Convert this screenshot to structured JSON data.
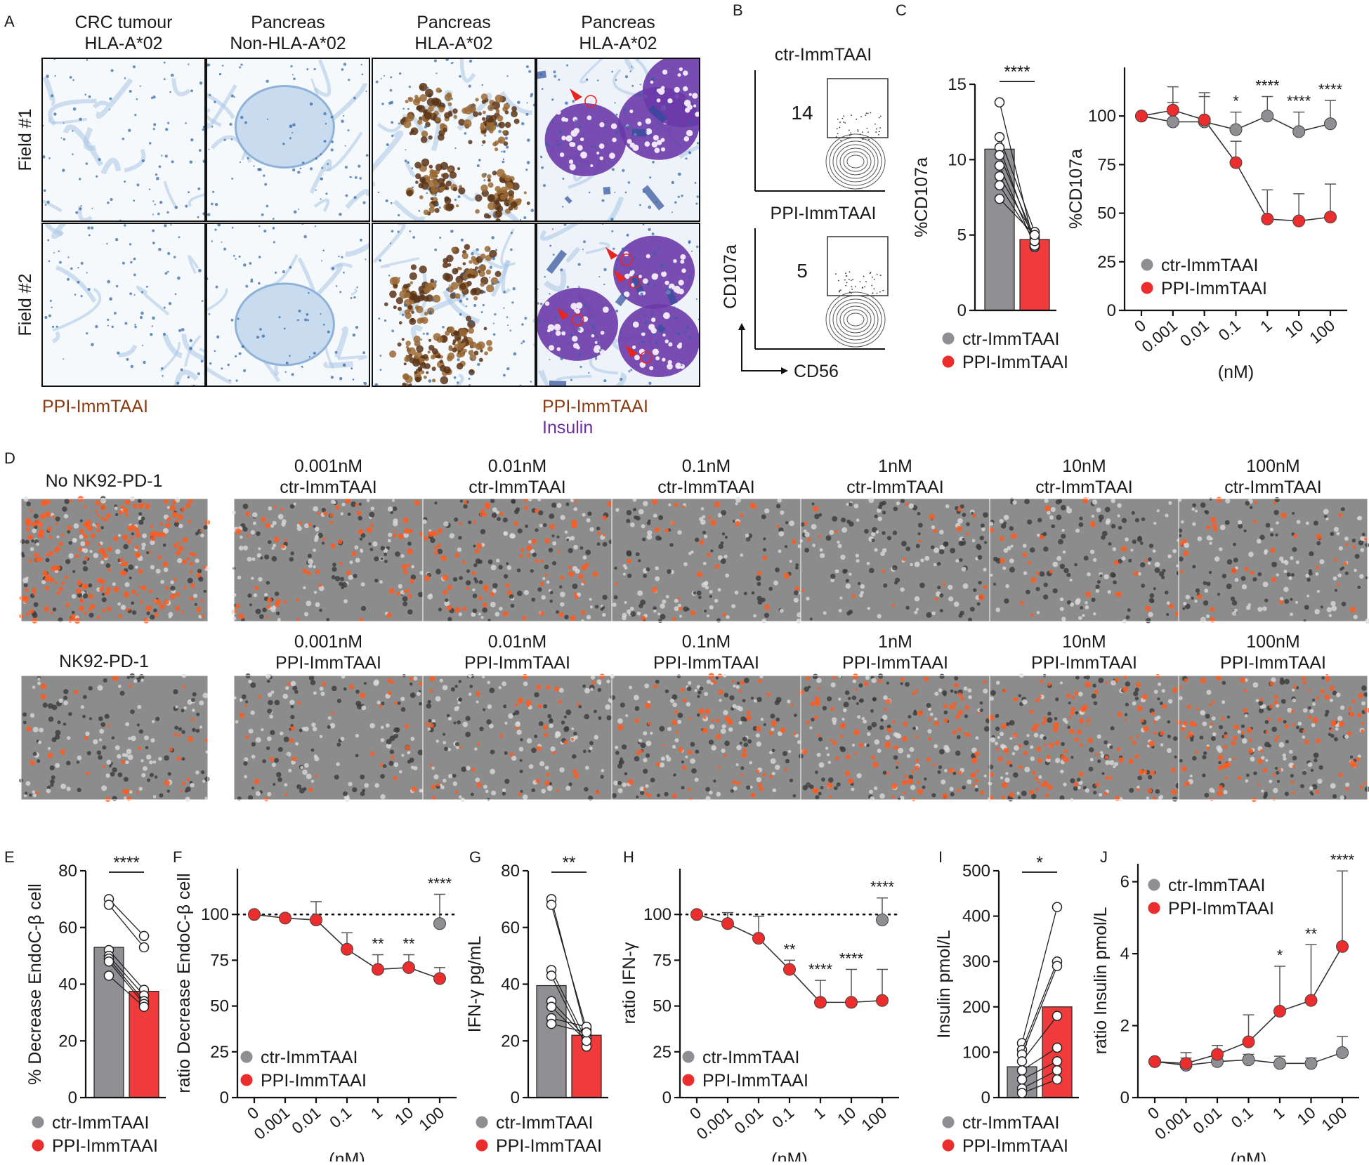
{
  "panel_letters": [
    "A",
    "B",
    "C",
    "D",
    "E",
    "F",
    "G",
    "H",
    "I",
    "J"
  ],
  "colors": {
    "grey": "#8e8e93",
    "red": "#ec2d2d",
    "bar_grey": "#8f8f94",
    "bar_red": "#ef3b3b",
    "brown": "#8a3b12",
    "purple": "#6b2fa0",
    "hema_blue": "#5d8fc2",
    "orange": "#ff5a1e"
  },
  "legend": {
    "ctr": "ctr-ImmTAAI",
    "ppi": "PPI-ImmTAAI"
  },
  "panel_a": {
    "columns": [
      {
        "line1": "CRC tumour",
        "line2": "HLA-A*02",
        "stain": "hema"
      },
      {
        "line1": "Pancreas",
        "line2": "Non-HLA-A*02",
        "stain": "islet-hema"
      },
      {
        "line1": "Pancreas",
        "line2": "HLA-A*02",
        "stain": "brown"
      },
      {
        "line1": "Pancreas",
        "line2": "HLA-A*02",
        "stain": "purple"
      }
    ],
    "rows": [
      "Field #1",
      "Field #2"
    ],
    "footer_left": "PPI-ImmTAAI",
    "footer_right_1": "PPI-ImmTAAI",
    "footer_right_2": "Insulin"
  },
  "panel_b": {
    "flow_top_label": "ctr-ImmTAAI",
    "flow_bottom_label": "PPI-ImmTAAI",
    "gate_top": "14",
    "gate_bottom": "5",
    "y_axis": "CD107a",
    "x_axis": "CD56"
  },
  "panel_d": {
    "top_label": "No NK92-PD-1",
    "bottom_label": "NK92-PD-1",
    "doses": [
      "0.001nM",
      "0.01nM",
      "0.1nM",
      "1nM",
      "10nM",
      "100nM"
    ],
    "top_agent": "ctr-ImmTAAI",
    "bottom_agent": "PPI-ImmTAAI",
    "intensity_top": [
      0.3,
      0.35,
      0.15,
      0.1,
      0.12,
      0.15
    ],
    "intensity_bottom": [
      0.15,
      0.2,
      0.3,
      0.45,
      0.5,
      0.5
    ],
    "intensity_ctrl_top": 1.0,
    "intensity_ctrl_bottom": 0.15
  },
  "chart_data": [
    {
      "id": "B",
      "type": "bar",
      "title": "",
      "xlabel": "",
      "ylabel": "%CD107a",
      "ylim": [
        0,
        15
      ],
      "yticks": [
        0,
        5,
        10,
        15
      ],
      "categories": [
        "ctr-ImmTAAI",
        "PPI-ImmTAAI"
      ],
      "values": [
        10.7,
        4.7
      ],
      "paired_points": [
        [
          13.8,
          4.2
        ],
        [
          11.5,
          5.2
        ],
        [
          10.8,
          4.4
        ],
        [
          10.3,
          4.8
        ],
        [
          9.6,
          4.3
        ],
        [
          8.9,
          4.9
        ],
        [
          8.3,
          4.6
        ],
        [
          7.4,
          5.0
        ]
      ],
      "annotation": "****"
    },
    {
      "id": "C",
      "type": "line",
      "xlabel": "(nM)",
      "ylabel": "%CD107a",
      "ylim": [
        0,
        125
      ],
      "yticks": [
        0,
        25,
        50,
        75,
        100
      ],
      "categories": [
        "0",
        "0.001",
        "0.01",
        "0.1",
        "1",
        "10",
        "100"
      ],
      "series": [
        {
          "name": "ctr-ImmTAAI",
          "values": [
            100,
            97,
            97,
            93,
            100,
            92,
            96
          ],
          "errors": [
            0,
            10,
            15,
            9,
            10,
            10,
            12
          ]
        },
        {
          "name": "PPI-ImmTAAI",
          "values": [
            100,
            103,
            98,
            76,
            47,
            46,
            48
          ],
          "errors": [
            0,
            12,
            12,
            11,
            15,
            14,
            17
          ]
        }
      ],
      "annotations": {
        "3": "*",
        "4": "****",
        "5": "****",
        "6": "****"
      }
    },
    {
      "id": "E",
      "type": "bar",
      "xlabel": "",
      "ylabel": "% Decrease EndoC-β cell",
      "ylim": [
        0,
        80
      ],
      "yticks": [
        0,
        20,
        40,
        60,
        80
      ],
      "categories": [
        "ctr-ImmTAAI",
        "PPI-ImmTAAI"
      ],
      "values": [
        53,
        37.5
      ],
      "paired_points": [
        [
          70,
          57
        ],
        [
          68,
          53
        ],
        [
          52,
          38
        ],
        [
          50,
          36
        ],
        [
          49,
          34
        ],
        [
          48,
          33
        ],
        [
          43,
          32
        ]
      ],
      "annotation": "****"
    },
    {
      "id": "F",
      "type": "line",
      "xlabel": "(nM)",
      "ylabel": "ratio Decrease EndoC-β cell",
      "ylim": [
        0,
        125
      ],
      "yticks": [
        0,
        25,
        50,
        75,
        100
      ],
      "categories": [
        "0",
        "0.001",
        "0.01",
        "0.1",
        "1",
        "10",
        "100"
      ],
      "reference_line": 100,
      "series": [
        {
          "name": "ctr-ImmTAAI",
          "values": [
            null,
            null,
            null,
            null,
            null,
            null,
            95
          ],
          "errors": [
            0,
            0,
            0,
            0,
            0,
            0,
            16
          ]
        },
        {
          "name": "PPI-ImmTAAI",
          "values": [
            100,
            98,
            97,
            81,
            70,
            71,
            65
          ],
          "errors": [
            0,
            0,
            10,
            9,
            8,
            7,
            6
          ]
        }
      ],
      "annotations": {
        "4": "**",
        "5": "**",
        "6": "****"
      }
    },
    {
      "id": "G",
      "type": "bar",
      "xlabel": "",
      "ylabel": "IFN-γ pg/mL",
      "ylim": [
        0,
        80
      ],
      "yticks": [
        0,
        20,
        40,
        60,
        80
      ],
      "categories": [
        "ctr-ImmTAAI",
        "PPI-ImmTAAI"
      ],
      "values": [
        39.5,
        22
      ],
      "paired_points": [
        [
          70,
          22
        ],
        [
          68,
          24
        ],
        [
          45,
          20
        ],
        [
          43,
          18
        ],
        [
          34,
          21
        ],
        [
          32,
          20
        ],
        [
          28,
          25
        ],
        [
          26,
          23
        ]
      ],
      "annotation": "**"
    },
    {
      "id": "H",
      "type": "line",
      "xlabel": "(nM)",
      "ylabel": "ratio IFN-γ",
      "ylim": [
        0,
        125
      ],
      "yticks": [
        0,
        25,
        50,
        75,
        100
      ],
      "categories": [
        "0",
        "0.001",
        "0.01",
        "0.1",
        "1",
        "10",
        "100"
      ],
      "reference_line": 100,
      "series": [
        {
          "name": "ctr-ImmTAAI",
          "values": [
            null,
            null,
            null,
            null,
            null,
            null,
            97
          ],
          "errors": [
            0,
            0,
            0,
            0,
            0,
            0,
            12
          ]
        },
        {
          "name": "PPI-ImmTAAI",
          "values": [
            100,
            95,
            87,
            70,
            52,
            52,
            53
          ],
          "errors": [
            0,
            6,
            12,
            5,
            12,
            18,
            17
          ]
        }
      ],
      "annotations": {
        "3": "**",
        "4": "****",
        "5": "****",
        "6": "****"
      }
    },
    {
      "id": "I",
      "type": "bar",
      "xlabel": "",
      "ylabel": "Insulin pmol/L",
      "ylim": [
        0,
        500
      ],
      "yticks": [
        0,
        100,
        200,
        300,
        400,
        500
      ],
      "categories": [
        "ctr-ImmTAAI",
        "PPI-ImmTAAI"
      ],
      "values": [
        68,
        200
      ],
      "paired_points": [
        [
          120,
          420
        ],
        [
          105,
          300
        ],
        [
          95,
          290
        ],
        [
          80,
          180
        ],
        [
          60,
          110
        ],
        [
          40,
          80
        ],
        [
          20,
          60
        ],
        [
          10,
          40
        ]
      ],
      "annotation": "*"
    },
    {
      "id": "J",
      "type": "line",
      "xlabel": "(nM)",
      "ylabel": "ratio Insulin pmol/L",
      "ylim": [
        0,
        6.5
      ],
      "yticks": [
        0,
        2,
        4,
        6
      ],
      "categories": [
        "0",
        "0.001",
        "0.01",
        "0.1",
        "1",
        "10",
        "100"
      ],
      "series": [
        {
          "name": "ctr-ImmTAAI",
          "values": [
            1.0,
            0.9,
            1.0,
            1.05,
            0.95,
            0.95,
            1.25
          ],
          "errors": [
            0,
            0.2,
            0.2,
            0.15,
            0.2,
            0.15,
            0.45
          ]
        },
        {
          "name": "PPI-ImmTAAI",
          "values": [
            1.0,
            0.95,
            1.2,
            1.55,
            2.4,
            2.7,
            4.2
          ],
          "errors": [
            0,
            0.3,
            0.25,
            0.75,
            1.25,
            1.55,
            2.1
          ]
        }
      ],
      "annotations": {
        "4": "*",
        "5": "**",
        "6": "****"
      }
    }
  ]
}
